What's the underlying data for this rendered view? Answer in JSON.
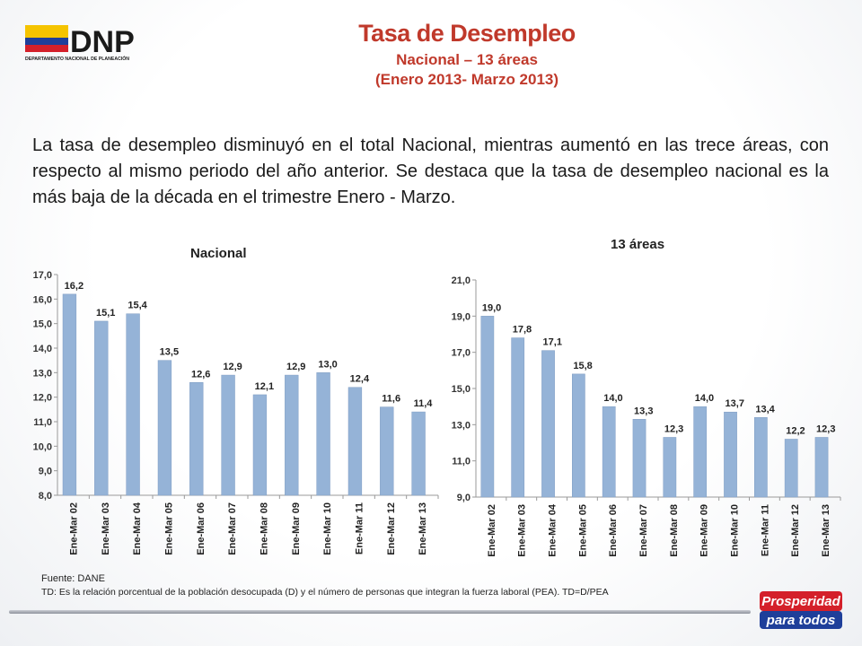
{
  "header": {
    "logo_text": "DNP",
    "logo_subtext": "DEPARTAMENTO NACIONAL DE PLANEACIÓN",
    "title": "Tasa de Desempleo",
    "subtitle": "Nacional – 13 áreas",
    "period": "(Enero 2013- Marzo 2013)"
  },
  "summary_text": "La tasa de desempleo disminuyó en el total Nacional, mientras aumentó en las trece áreas, con respecto al mismo periodo del año anterior. Se destaca que la tasa de desempleo nacional es la más baja de la década en el trimestre Enero - Marzo.",
  "chart_data": [
    {
      "type": "bar",
      "title": "Nacional",
      "categories": [
        "Ene-Mar 02",
        "Ene-Mar 03",
        "Ene-Mar 04",
        "Ene-Mar 05",
        "Ene-Mar 06",
        "Ene-Mar 07",
        "Ene-Mar 08",
        "Ene-Mar 09",
        "Ene-Mar 10",
        "Ene-Mar 11",
        "Ene-Mar 12",
        "Ene-Mar 13"
      ],
      "values": [
        16.2,
        15.1,
        15.4,
        13.5,
        12.6,
        12.9,
        12.1,
        12.9,
        13.0,
        12.4,
        11.6,
        11.4
      ],
      "labels": [
        "16,2",
        "15,1",
        "15,4",
        "13,5",
        "12,6",
        "12,9",
        "12,1",
        "12,9",
        "13,0",
        "12,4",
        "11,6",
        "11,4"
      ],
      "yticks": [
        "8,0",
        "9,0",
        "10,0",
        "11,0",
        "12,0",
        "13,0",
        "14,0",
        "15,0",
        "16,0",
        "17,0"
      ],
      "ylim": [
        8,
        17
      ],
      "grid": false,
      "color": "#95b3d7"
    },
    {
      "type": "bar",
      "title": "13 áreas",
      "categories": [
        "Ene-Mar 02",
        "Ene-Mar 03",
        "Ene-Mar 04",
        "Ene-Mar 05",
        "Ene-Mar 06",
        "Ene-Mar 07",
        "Ene-Mar 08",
        "Ene-Mar 09",
        "Ene-Mar 10",
        "Ene-Mar 11",
        "Ene-Mar 12",
        "Ene-Mar 13"
      ],
      "values": [
        19.0,
        17.8,
        17.1,
        15.8,
        14.0,
        13.3,
        12.3,
        14.0,
        13.7,
        13.4,
        12.2,
        12.3
      ],
      "labels": [
        "19,0",
        "17,8",
        "17,1",
        "15,8",
        "14,0",
        "13,3",
        "12,3",
        "14,0",
        "13,7",
        "13,4",
        "12,2",
        "12,3"
      ],
      "yticks": [
        "9,0",
        "11,0",
        "13,0",
        "15,0",
        "17,0",
        "19,0",
        "21,0"
      ],
      "ylim": [
        9,
        21
      ],
      "grid": false,
      "color": "#95b3d7"
    }
  ],
  "footer": {
    "source": "Fuente: DANE",
    "note": "TD:  Es la relación porcentual de la población desocupada (D) y el número de personas que integran la fuerza laboral (PEA). TD=D/PEA",
    "badge_line1": "Prosperidad",
    "badge_line2": "para todos"
  },
  "colors": {
    "title": "#c0392b",
    "bar": "#95b3d7",
    "flag_yellow": "#f5c400",
    "flag_blue": "#1f3f9a",
    "flag_red": "#d4202a"
  }
}
